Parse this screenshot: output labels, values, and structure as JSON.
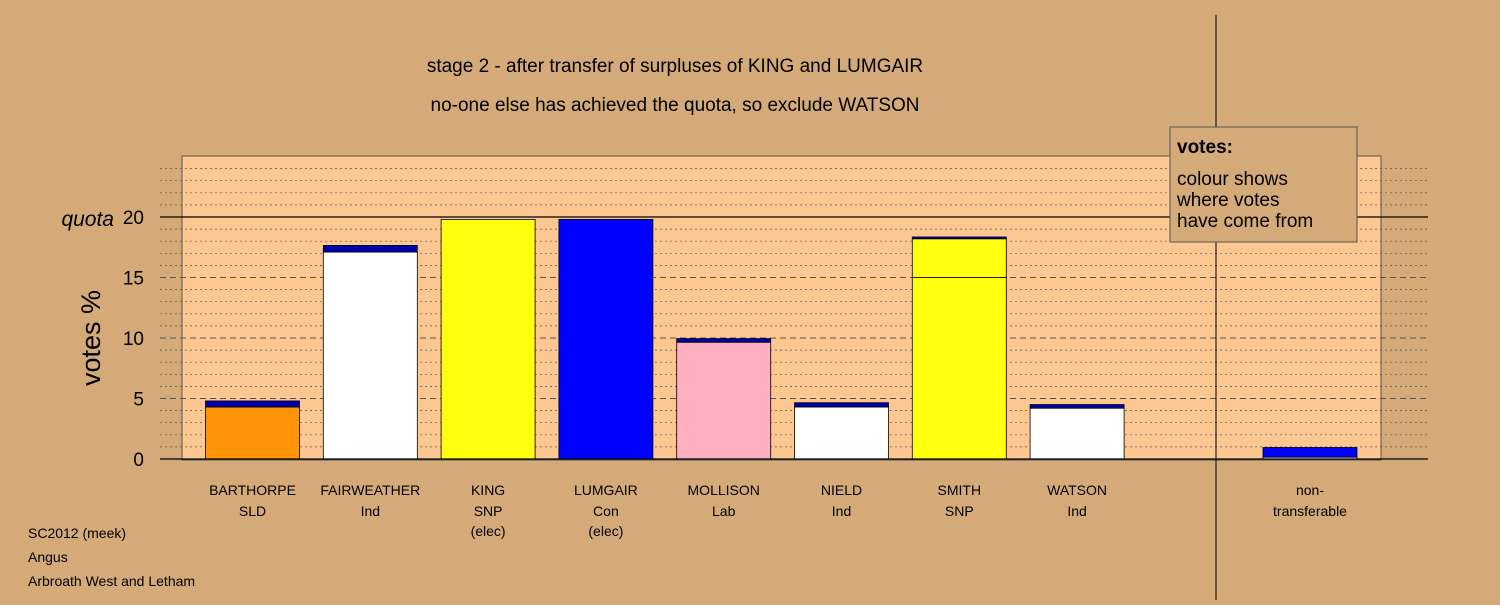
{
  "colors": {
    "background": "#d4aa78",
    "plot_background": "#fcc790",
    "SLD": "#ff9408",
    "Ind": "#ffffff",
    "SNP": "#ffff10",
    "Con": "#0000ff",
    "Lab": "#ffb0c0",
    "transfer_in": "#0000aa"
  },
  "chart_data": {
    "type": "bar",
    "stacked": true,
    "title": "stage 2 - after transfer of surpluses of KING and LUMGAIR",
    "subtitle": "no-one else has achieved the quota, so exclude WATSON",
    "ylabel": "votes %",
    "quota_label": "quota",
    "quota": 20,
    "ylim": [
      0,
      25
    ],
    "yticks": [
      0,
      5,
      10,
      15,
      20
    ],
    "grid": true,
    "categories": [
      {
        "name": "BARTHORPE",
        "party": "SLD",
        "note": "",
        "color": "#ff9408",
        "segments": [
          {
            "value": 4.3,
            "color": "#ff9408"
          },
          {
            "value": 0.5,
            "color": "#0000aa"
          }
        ]
      },
      {
        "name": "FAIRWEATHER",
        "party": "Ind",
        "note": "",
        "color": "#ffffff",
        "segments": [
          {
            "value": 17.1,
            "color": "#ffffff"
          },
          {
            "value": 0.55,
            "color": "#0000aa"
          }
        ]
      },
      {
        "name": "KING",
        "party": "SNP",
        "note": "(elec)",
        "color": "#ffff10",
        "segments": [
          {
            "value": 19.8,
            "color": "#ffff10"
          }
        ]
      },
      {
        "name": "LUMGAIR",
        "party": "Con",
        "note": "(elec)",
        "color": "#0000ff",
        "segments": [
          {
            "value": 19.8,
            "color": "#0000ff"
          }
        ]
      },
      {
        "name": "MOLLISON",
        "party": "Lab",
        "note": "",
        "color": "#ffb0c0",
        "segments": [
          {
            "value": 9.65,
            "color": "#ffb0c0"
          },
          {
            "value": 0.3,
            "color": "#0000aa"
          }
        ]
      },
      {
        "name": "NIELD",
        "party": "Ind",
        "note": "",
        "color": "#ffffff",
        "segments": [
          {
            "value": 4.3,
            "color": "#ffffff"
          },
          {
            "value": 0.35,
            "color": "#0000aa"
          }
        ]
      },
      {
        "name": "SMITH",
        "party": "SNP",
        "note": "",
        "color": "#ffff10",
        "segments": [
          {
            "value": 15.0,
            "color": "#ffff10"
          },
          {
            "value": 3.2,
            "color": "#ffff10"
          },
          {
            "value": 0.15,
            "color": "#0000aa"
          }
        ]
      },
      {
        "name": "WATSON",
        "party": "Ind",
        "note": "",
        "color": "#ffffff",
        "segments": [
          {
            "value": 4.2,
            "color": "#ffffff"
          },
          {
            "value": 0.3,
            "color": "#0000aa"
          }
        ]
      }
    ],
    "nontransferable": {
      "label_line1": "non-",
      "label_line2": "transferable",
      "segments": [
        {
          "value": 0.15,
          "color": "#ffffff"
        },
        {
          "value": 0.8,
          "color": "#0000ff"
        }
      ]
    },
    "legend": {
      "heading": "votes:",
      "line1": "colour shows",
      "line2": "where votes",
      "line3": "have come from",
      "placement": "top-right"
    }
  },
  "footer": {
    "line1": "SC2012 (meek)",
    "line2": "Angus",
    "line3": "Arbroath West and Letham"
  }
}
